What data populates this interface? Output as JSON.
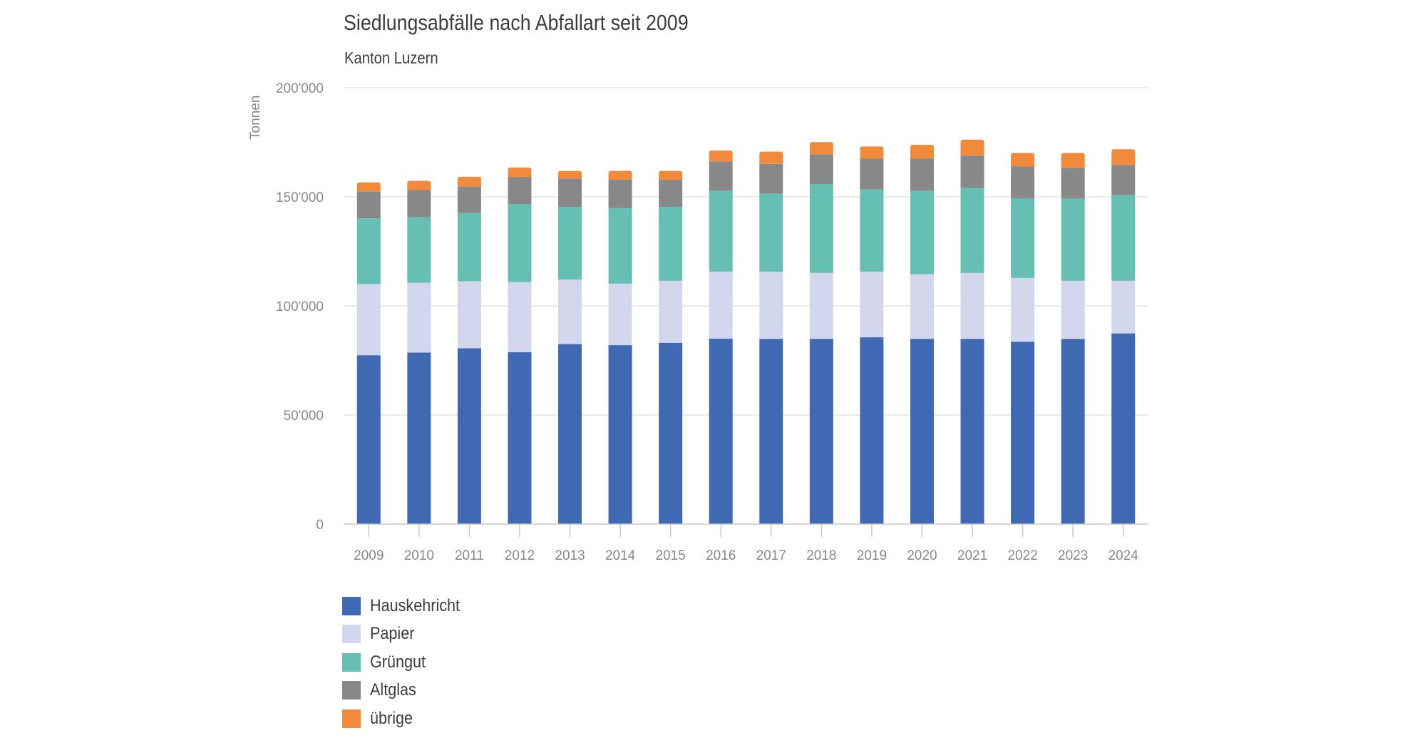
{
  "chart_data": {
    "type": "bar",
    "stacked": true,
    "title": "Siedlungsabfälle nach Abfallart seit 2009",
    "subtitle": "Kanton Luzern",
    "xlabel": "",
    "ylabel": "Tonnen",
    "ylim": [
      0,
      200000
    ],
    "yticks": [
      0,
      50000,
      100000,
      150000,
      200000
    ],
    "ytick_labels": [
      "0",
      "50'000",
      "100'000",
      "150'000",
      "200'000"
    ],
    "grid": true,
    "legend_position": "bottom-left",
    "categories": [
      "2009",
      "2010",
      "2011",
      "2012",
      "2013",
      "2014",
      "2015",
      "2016",
      "2017",
      "2018",
      "2019",
      "2020",
      "2021",
      "2022",
      "2023",
      "2024"
    ],
    "series": [
      {
        "name": "Hauskehricht",
        "color": "#3F69B3",
        "values": [
          77400,
          78600,
          80600,
          78800,
          82500,
          82000,
          83100,
          85000,
          84900,
          84900,
          85600,
          84900,
          84900,
          83600,
          84900,
          87400
        ]
      },
      {
        "name": "Papier",
        "color": "#D3D7EE",
        "values": [
          32600,
          32000,
          30700,
          32100,
          29600,
          28200,
          28400,
          30700,
          30800,
          30200,
          30100,
          29600,
          30200,
          29200,
          26600,
          24100
        ]
      },
      {
        "name": "Grüngut",
        "color": "#66BFB3",
        "values": [
          30100,
          30000,
          31300,
          35700,
          33300,
          34600,
          33900,
          37100,
          35800,
          40700,
          37700,
          38300,
          39000,
          36400,
          37700,
          39300
        ]
      },
      {
        "name": "Altglas",
        "color": "#888888",
        "values": [
          12300,
          12500,
          12100,
          12400,
          13000,
          13000,
          12400,
          13400,
          13600,
          13700,
          14100,
          14700,
          14800,
          14700,
          14100,
          13800
        ]
      },
      {
        "name": "übrige",
        "color": "#F28A3C",
        "values": [
          4200,
          4200,
          4500,
          4400,
          3500,
          4100,
          4100,
          5000,
          5600,
          5600,
          5600,
          6300,
          7300,
          6200,
          6800,
          7200
        ]
      }
    ]
  }
}
